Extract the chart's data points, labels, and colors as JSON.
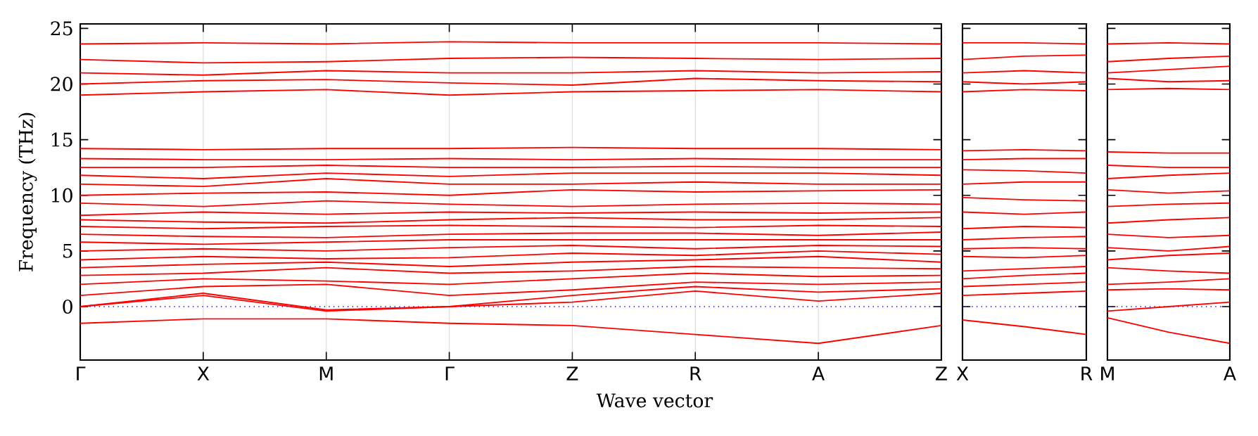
{
  "chart_data": [
    {
      "type": "line",
      "xlabel": "Wave vector",
      "ylabel": "Frequency (THz)",
      "color": "#ff0000",
      "grid": "x",
      "categories": [
        "Γ",
        "X",
        "M",
        "Γ",
        "Z",
        "R",
        "A",
        "Z"
      ],
      "ylim": [
        -4.8,
        25.4
      ],
      "yticks": [
        0,
        5,
        10,
        15,
        20,
        25
      ],
      "ref_lines": [
        {
          "axis": "y",
          "value": 0,
          "color": "#0000ff",
          "line_style": "dotted"
        }
      ],
      "series": [
        {
          "values": [
            -1.5,
            -1.1,
            -1.1,
            -1.5,
            -1.7,
            -2.5,
            -3.3,
            -1.7
          ]
        },
        {
          "values": [
            0,
            1,
            -0.4,
            0,
            0.4,
            1.4,
            0.5,
            1.2
          ]
        },
        {
          "values": [
            0,
            1.2,
            -0.3,
            0,
            1,
            1.8,
            1.3,
            1.6
          ]
        },
        {
          "values": [
            1,
            1.8,
            2,
            1,
            1.5,
            2.2,
            2,
            2.2
          ]
        },
        {
          "values": [
            2,
            2.5,
            2.3,
            2,
            2.5,
            3,
            2.7,
            2.8
          ]
        },
        {
          "values": [
            2.8,
            3,
            3.5,
            3,
            3.2,
            3.6,
            3.5,
            3.4
          ]
        },
        {
          "values": [
            3.5,
            3.8,
            4,
            3.6,
            4,
            4.2,
            4.5,
            4
          ]
        },
        {
          "values": [
            4.2,
            4.5,
            4.3,
            4.4,
            4.8,
            4.6,
            5,
            4.7
          ]
        },
        {
          "values": [
            5,
            5.2,
            5,
            5.3,
            5.5,
            5.2,
            5.5,
            5.4
          ]
        },
        {
          "values": [
            5.8,
            5.6,
            5.8,
            6,
            6,
            6,
            6,
            6
          ]
        },
        {
          "values": [
            6.5,
            6.3,
            6.2,
            6.5,
            6.6,
            6.6,
            6.4,
            6.7
          ]
        },
        {
          "values": [
            7.2,
            7,
            7.2,
            7.3,
            7.2,
            7.1,
            7.3,
            7.2
          ]
        },
        {
          "values": [
            7.8,
            7.6,
            7.5,
            7.8,
            8,
            7.8,
            7.8,
            8
          ]
        },
        {
          "values": [
            8.2,
            8.5,
            8.3,
            8.5,
            8.4,
            8.5,
            8.4,
            8.5
          ]
        },
        {
          "values": [
            9.3,
            9,
            9.5,
            9.2,
            9,
            9.2,
            9.3,
            9.2
          ]
        },
        {
          "values": [
            10,
            10.2,
            10.3,
            10,
            10.5,
            10.3,
            10.4,
            10.5
          ]
        },
        {
          "values": [
            11,
            10.8,
            11.5,
            11,
            11,
            11.2,
            11,
            11
          ]
        },
        {
          "values": [
            11.8,
            11.5,
            12,
            11.7,
            12,
            12,
            12,
            11.8
          ]
        },
        {
          "values": [
            12.5,
            12.5,
            12.7,
            12.5,
            12.5,
            12.6,
            12.5,
            12.5
          ]
        },
        {
          "values": [
            13.3,
            13.2,
            13.2,
            13.3,
            13.2,
            13.3,
            13.2,
            13.2
          ]
        },
        {
          "values": [
            14.2,
            14.1,
            14.2,
            14.2,
            14.3,
            14.2,
            14.2,
            14.1
          ]
        },
        {
          "values": [
            19,
            19.3,
            19.5,
            19,
            19.3,
            19.4,
            19.5,
            19.3
          ]
        },
        {
          "values": [
            20,
            20.3,
            20.4,
            20.1,
            19.9,
            20.5,
            20.3,
            20.2
          ]
        },
        {
          "values": [
            21,
            20.8,
            21.2,
            21,
            21,
            21.2,
            21,
            21.1
          ]
        },
        {
          "values": [
            22.2,
            21.9,
            22,
            22.3,
            22.4,
            22.3,
            22.2,
            22.3
          ]
        },
        {
          "values": [
            23.6,
            23.7,
            23.6,
            23.8,
            23.7,
            23.7,
            23.7,
            23.6
          ]
        }
      ]
    },
    {
      "type": "line",
      "color": "#ff0000",
      "tick_labels": "x",
      "categories": [
        "X",
        null,
        "R"
      ],
      "ylim": [
        -4.8,
        25.4
      ],
      "yticks": [
        {
          "value": 0,
          "label": null
        },
        {
          "value": 5,
          "label": null
        },
        {
          "value": 10,
          "label": null
        },
        {
          "value": 15,
          "label": null
        },
        {
          "value": 20,
          "label": null
        },
        {
          "value": 25,
          "label": null
        }
      ],
      "ref_lines": [
        {
          "axis": "y",
          "value": 0,
          "color": "#0000ff",
          "line_style": "dotted"
        }
      ],
      "series": [
        {
          "values": [
            -1.2,
            -1.8,
            -2.5
          ]
        },
        {
          "values": [
            1,
            1.2,
            1.4
          ]
        },
        {
          "values": [
            1.8,
            2,
            2.2
          ]
        },
        {
          "values": [
            2.5,
            2.8,
            3
          ]
        },
        {
          "values": [
            3.2,
            3.4,
            3.6
          ]
        },
        {
          "values": [
            4.5,
            4.4,
            4.6
          ]
        },
        {
          "values": [
            5.2,
            5.3,
            5.2
          ]
        },
        {
          "values": [
            6,
            6.2,
            6.3
          ]
        },
        {
          "values": [
            7,
            7.2,
            7.1
          ]
        },
        {
          "values": [
            8.5,
            8.3,
            8.5
          ]
        },
        {
          "values": [
            9.8,
            9.6,
            9.5
          ]
        },
        {
          "values": [
            11,
            11.2,
            11.2
          ]
        },
        {
          "values": [
            12.3,
            12.2,
            12
          ]
        },
        {
          "values": [
            13.2,
            13.3,
            13.3
          ]
        },
        {
          "values": [
            14,
            14.1,
            14
          ]
        },
        {
          "values": [
            19.3,
            19.5,
            19.4
          ]
        },
        {
          "values": [
            20.2,
            20,
            20.2
          ]
        },
        {
          "values": [
            21,
            21.2,
            21
          ]
        },
        {
          "values": [
            22.2,
            22.5,
            22.6
          ]
        },
        {
          "values": [
            23.7,
            23.7,
            23.6
          ]
        }
      ]
    },
    {
      "type": "line",
      "color": "#ff0000",
      "tick_labels": "x",
      "categories": [
        "M",
        null,
        "A"
      ],
      "ylim": [
        -4.8,
        25.4
      ],
      "yticks": [
        {
          "value": 0,
          "label": null
        },
        {
          "value": 5,
          "label": null
        },
        {
          "value": 10,
          "label": null
        },
        {
          "value": 15,
          "label": null
        },
        {
          "value": 20,
          "label": null
        },
        {
          "value": 25,
          "label": null
        }
      ],
      "ref_lines": [
        {
          "axis": "y",
          "value": 0,
          "color": "#0000ff",
          "line_style": "dotted"
        }
      ],
      "series": [
        {
          "values": [
            -1,
            -2.3,
            -3.3
          ]
        },
        {
          "values": [
            -0.4,
            0,
            0.4
          ]
        },
        {
          "values": [
            1.5,
            1.6,
            1.5
          ]
        },
        {
          "values": [
            2,
            2.2,
            2.5
          ]
        },
        {
          "values": [
            3.5,
            3.2,
            3
          ]
        },
        {
          "values": [
            4.2,
            4.6,
            4.8
          ]
        },
        {
          "values": [
            5.3,
            5,
            5.4
          ]
        },
        {
          "values": [
            6.5,
            6.2,
            6.4
          ]
        },
        {
          "values": [
            7.5,
            7.8,
            8
          ]
        },
        {
          "values": [
            9,
            9.2,
            9.3
          ]
        },
        {
          "values": [
            10.5,
            10.2,
            10.4
          ]
        },
        {
          "values": [
            11.5,
            11.8,
            12
          ]
        },
        {
          "values": [
            12.7,
            12.5,
            12.5
          ]
        },
        {
          "values": [
            13.9,
            13.8,
            13.8
          ]
        },
        {
          "values": [
            19.5,
            19.6,
            19.5
          ]
        },
        {
          "values": [
            20.5,
            20.2,
            20.3
          ]
        },
        {
          "values": [
            21,
            21.3,
            21.6
          ]
        },
        {
          "values": [
            22,
            22.3,
            22.5
          ]
        },
        {
          "values": [
            23.6,
            23.7,
            23.6
          ]
        }
      ]
    }
  ]
}
